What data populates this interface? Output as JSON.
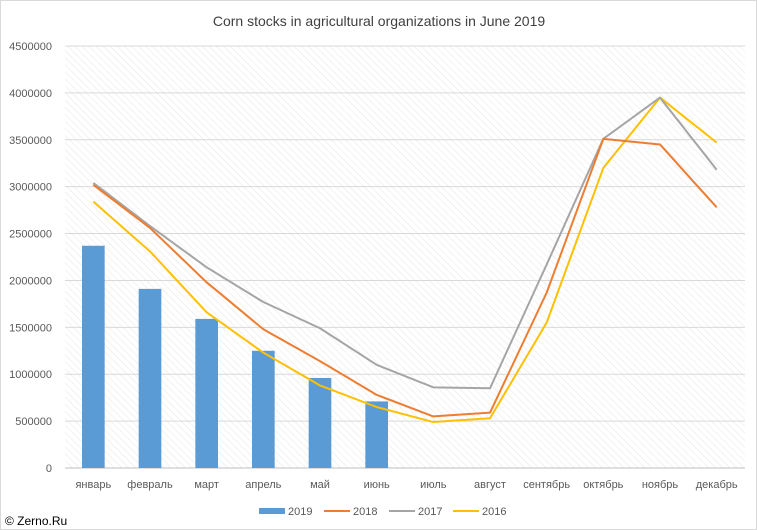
{
  "chart_data": {
    "type": "bar+line",
    "title": "Corn stocks in agricultural organizations in June 2019",
    "categories": [
      "январь",
      "февраль",
      "март",
      "апрель",
      "май",
      "июнь",
      "июль",
      "август",
      "сентябрь",
      "октябрь",
      "ноябрь",
      "декабрь"
    ],
    "ylim": [
      0,
      4500000
    ],
    "yticks": [
      "0",
      "500000",
      "1000000",
      "1500000",
      "2000000",
      "2500000",
      "3000000",
      "3500000",
      "4000000",
      "4500000"
    ],
    "grid": true,
    "legend_position": "bottom",
    "series": [
      {
        "name": "2019",
        "type": "bar",
        "color": "#5b9bd5",
        "values": [
          2370000,
          1910000,
          1590000,
          1250000,
          960000,
          710000,
          null,
          null,
          null,
          null,
          null,
          null
        ]
      },
      {
        "name": "2018",
        "type": "line",
        "color": "#ed7d31",
        "values": [
          3020000,
          2560000,
          1980000,
          1480000,
          1140000,
          780000,
          550000,
          590000,
          1870000,
          3510000,
          3450000,
          2780000
        ]
      },
      {
        "name": "2017",
        "type": "line",
        "color": "#a5a5a5",
        "values": [
          3040000,
          2580000,
          2140000,
          1770000,
          1490000,
          1100000,
          860000,
          850000,
          2170000,
          3510000,
          3950000,
          3180000
        ]
      },
      {
        "name": "2016",
        "type": "line",
        "color": "#ffc000",
        "values": [
          2840000,
          2310000,
          1660000,
          1230000,
          880000,
          650000,
          490000,
          530000,
          1550000,
          3200000,
          3950000,
          3470000
        ]
      }
    ]
  },
  "credit": "© Zerno.Ru"
}
